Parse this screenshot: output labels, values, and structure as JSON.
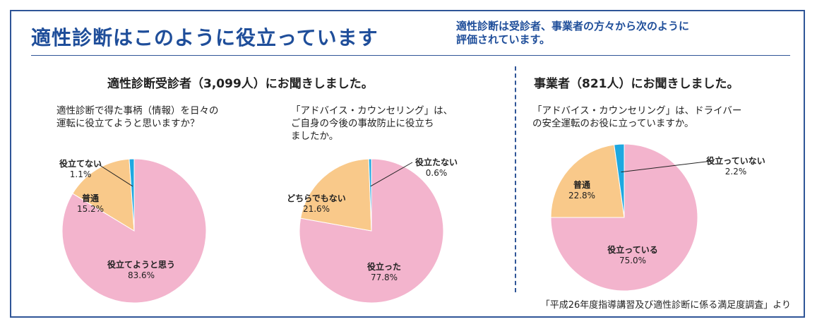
{
  "header": {
    "title": "適性診断はこのように役立っています",
    "subtitle": "適性診断は受診者、事業者の方々から次のように\n評価されています。"
  },
  "sections": [
    {
      "title": "適性診断受診者（3,099人）にお聞きしました。"
    },
    {
      "title": "事業者（821人）にお聞きしました。"
    }
  ],
  "footer": {
    "source": "「平成26年度指導講習及び適性診断に係る満足度調査」より"
  },
  "colors": {
    "pink": "#f3b4cd",
    "orange": "#f9c98a",
    "blue": "#1ea8e0",
    "frame": "#2f5597",
    "title": "#1f4e9a"
  },
  "chart_data": [
    {
      "type": "pie",
      "title": "適性診断で得た事柄（情報）を日々の\n運転に役立てようと思いますか？",
      "slices": [
        {
          "label": "役立てようと思う",
          "value": 83.6,
          "value_label": "83.6%"
        },
        {
          "label": "普通",
          "value": 15.2,
          "value_label": "15.2%"
        },
        {
          "label": "役立てない",
          "value": 1.1,
          "value_label": "1.1%"
        }
      ]
    },
    {
      "type": "pie",
      "title": "「アドバイス・カウンセリング」は、\nご自身の今後の事故防止に役立ち\nましたか。",
      "slices": [
        {
          "label": "役立った",
          "value": 77.8,
          "value_label": "77.8%"
        },
        {
          "label": "どちらでもない",
          "value": 21.6,
          "value_label": "21.6%"
        },
        {
          "label": "役立たない",
          "value": 0.6,
          "value_label": "0.6%"
        }
      ]
    },
    {
      "type": "pie",
      "title": "「アドバイス・カウンセリング」は、ドライバー\nの安全運転のお役に立っていますか。",
      "slices": [
        {
          "label": "役立っている",
          "value": 75.0,
          "value_label": "75.0%"
        },
        {
          "label": "普通",
          "value": 22.8,
          "value_label": "22.8%"
        },
        {
          "label": "役立っていない",
          "value": 2.2,
          "value_label": "2.2%"
        }
      ]
    }
  ]
}
